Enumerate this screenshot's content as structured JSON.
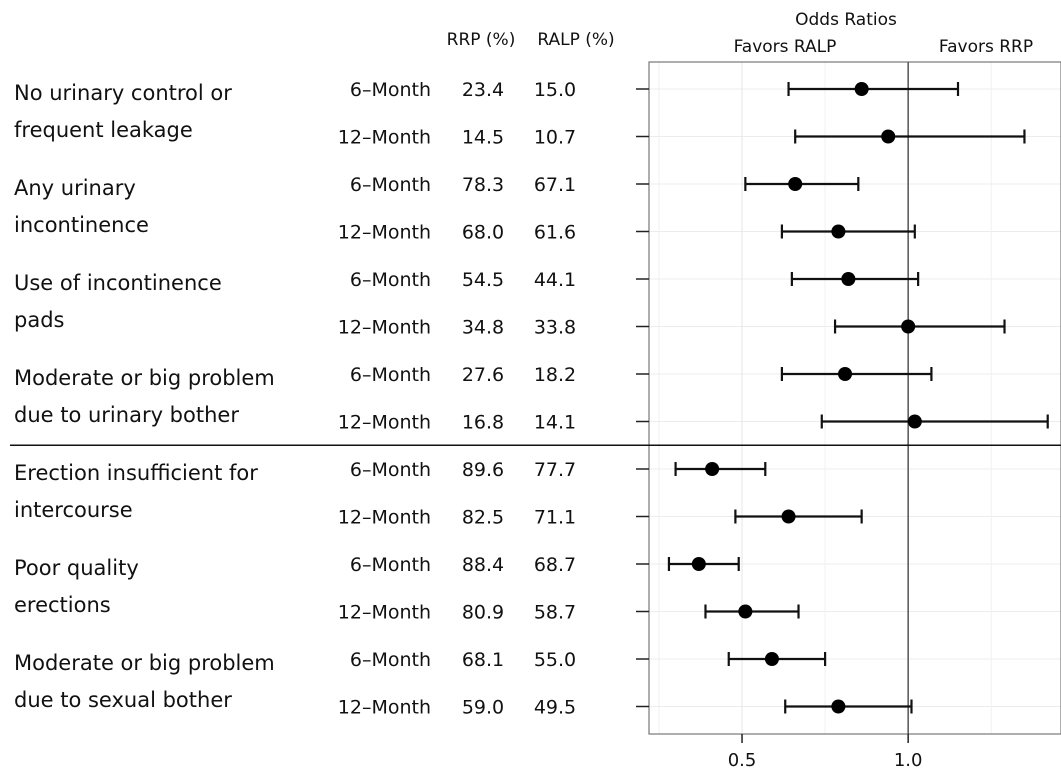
{
  "chart_data": {
    "type": "forest",
    "title": "Odds Ratios",
    "left_label": "Favors RALP",
    "right_label": "Favors RRP",
    "column_headers": [
      "RRP (%)",
      "RALP (%)"
    ],
    "xlim": [
      0.22,
      1.46
    ],
    "x_ticks": [
      0.5,
      1.0
    ],
    "x_tick_labels": [
      "0.5",
      "1.0"
    ],
    "reference_line": 1.0,
    "grid": true,
    "groups": [
      {
        "label_lines": [
          "No urinary control or",
          "frequent leakage"
        ],
        "rows": [
          {
            "timepoint": "6–Month",
            "rrp": "23.4",
            "ralp": "15.0",
            "or": 0.86,
            "lo": 0.64,
            "hi": 1.15
          },
          {
            "timepoint": "12–Month",
            "rrp": "14.5",
            "ralp": "10.7",
            "or": 0.94,
            "lo": 0.66,
            "hi": 1.35
          }
        ]
      },
      {
        "label_lines": [
          "Any urinary",
          "incontinence"
        ],
        "rows": [
          {
            "timepoint": "6–Month",
            "rrp": "78.3",
            "ralp": "67.1",
            "or": 0.66,
            "lo": 0.51,
            "hi": 0.85
          },
          {
            "timepoint": "12–Month",
            "rrp": "68.0",
            "ralp": "61.6",
            "or": 0.79,
            "lo": 0.62,
            "hi": 1.02
          }
        ]
      },
      {
        "label_lines": [
          "Use of incontinence",
          "pads"
        ],
        "rows": [
          {
            "timepoint": "6–Month",
            "rrp": "54.5",
            "ralp": "44.1",
            "or": 0.82,
            "lo": 0.65,
            "hi": 1.03
          },
          {
            "timepoint": "12–Month",
            "rrp": "34.8",
            "ralp": "33.8",
            "or": 1.0,
            "lo": 0.78,
            "hi": 1.29
          }
        ]
      },
      {
        "label_lines": [
          "Moderate or big problem",
          "due to urinary bother"
        ],
        "rows": [
          {
            "timepoint": "6–Month",
            "rrp": "27.6",
            "ralp": "18.2",
            "or": 0.81,
            "lo": 0.62,
            "hi": 1.07
          },
          {
            "timepoint": "12–Month",
            "rrp": "16.8",
            "ralp": "14.1",
            "or": 1.02,
            "lo": 0.74,
            "hi": 1.42
          }
        ]
      },
      {
        "label_lines": [
          "Erection insufficient for",
          "intercourse"
        ],
        "rows": [
          {
            "timepoint": "6–Month",
            "rrp": "89.6",
            "ralp": "77.7",
            "or": 0.41,
            "lo": 0.3,
            "hi": 0.57
          },
          {
            "timepoint": "12–Month",
            "rrp": "82.5",
            "ralp": "71.1",
            "or": 0.64,
            "lo": 0.48,
            "hi": 0.86
          }
        ]
      },
      {
        "label_lines": [
          "Poor quality",
          "erections"
        ],
        "rows": [
          {
            "timepoint": "6–Month",
            "rrp": "88.4",
            "ralp": "68.7",
            "or": 0.37,
            "lo": 0.28,
            "hi": 0.49
          },
          {
            "timepoint": "12–Month",
            "rrp": "80.9",
            "ralp": "58.7",
            "or": 0.51,
            "lo": 0.39,
            "hi": 0.67
          }
        ]
      },
      {
        "label_lines": [
          "Moderate or big problem",
          "due to sexual bother"
        ],
        "rows": [
          {
            "timepoint": "6–Month",
            "rrp": "68.1",
            "ralp": "55.0",
            "or": 0.59,
            "lo": 0.46,
            "hi": 0.75
          },
          {
            "timepoint": "12–Month",
            "rrp": "59.0",
            "ralp": "49.5",
            "or": 0.79,
            "lo": 0.63,
            "hi": 1.01
          }
        ]
      }
    ]
  }
}
